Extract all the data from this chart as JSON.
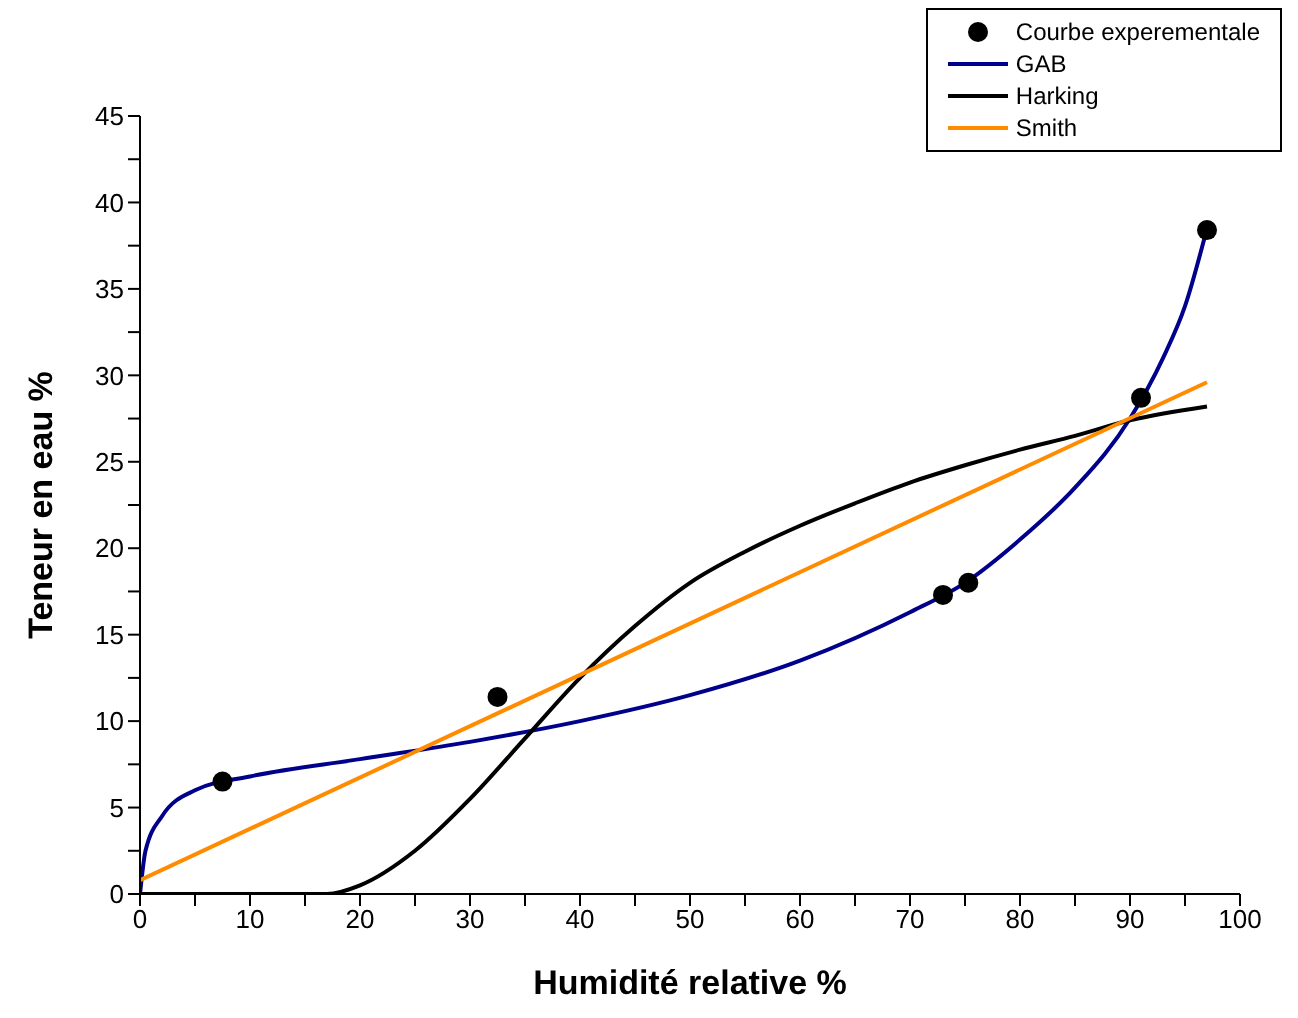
{
  "chart_data": {
    "type": "line",
    "xlabel": "Humidité relative %",
    "ylabel": "Teneur en eau %",
    "xlim": [
      0,
      100
    ],
    "ylim": [
      0,
      45
    ],
    "xticks": [
      0,
      {
        "value": 5,
        "label": null
      },
      10,
      {
        "value": 15,
        "label": null
      },
      20,
      {
        "value": 25,
        "label": null
      },
      30,
      {
        "value": 35,
        "label": null
      },
      40,
      {
        "value": 45,
        "label": null
      },
      50,
      {
        "value": 55,
        "label": null
      },
      60,
      {
        "value": 65,
        "label": null
      },
      70,
      {
        "value": 75,
        "label": null
      },
      80,
      {
        "value": 85,
        "label": null
      },
      90,
      {
        "value": 95,
        "label": null
      },
      100
    ],
    "yticks": [
      0,
      {
        "value": 2.5,
        "label": null
      },
      5,
      {
        "value": 7.5,
        "label": null
      },
      10,
      {
        "value": 12.5,
        "label": null
      },
      15,
      {
        "value": 17.5,
        "label": null
      },
      20,
      {
        "value": 22.5,
        "label": null
      },
      25,
      {
        "value": 27.5,
        "label": null
      },
      30,
      {
        "value": 32.5,
        "label": null
      },
      35,
      {
        "value": 37.5,
        "label": null
      },
      40,
      {
        "value": 42.5,
        "label": null
      },
      45
    ],
    "grid": false,
    "legend": "top right",
    "series": [
      {
        "name": "Courbe experementale",
        "type": "scatter",
        "marker": "circle",
        "color": "#000000",
        "x": [
          7.5,
          32.5,
          73,
          75.3,
          91,
          97
        ],
        "values": [
          6.5,
          11.4,
          17.3,
          18,
          28.7,
          38.4
        ]
      },
      {
        "name": "GAB",
        "color": "#00008b",
        "x": [
          0,
          0.5,
          2,
          5,
          10,
          20,
          30,
          40,
          50,
          60,
          70,
          75,
          80,
          85,
          90,
          93,
          95,
          97
        ],
        "values": [
          0,
          2.5,
          4.5,
          6,
          6.8,
          7.8,
          8.8,
          10,
          11.5,
          13.5,
          16.3,
          18,
          20.5,
          23.5,
          27.5,
          31,
          34,
          38.5
        ]
      },
      {
        "name": "Harking",
        "color": "#000000",
        "x": [
          0,
          17,
          20,
          25,
          30,
          35,
          40,
          45,
          50,
          55,
          60,
          65,
          70,
          75,
          80,
          85,
          90,
          97
        ],
        "values": [
          0,
          0,
          0.5,
          2.5,
          5.5,
          9,
          12.5,
          15.5,
          18,
          19.8,
          21.3,
          22.6,
          23.8,
          24.8,
          25.7,
          26.5,
          27.4,
          28.2
        ]
      },
      {
        "name": "Smith",
        "color": "#ff8c00",
        "x": [
          0,
          97
        ],
        "values": [
          0.8,
          29.6
        ]
      }
    ]
  }
}
